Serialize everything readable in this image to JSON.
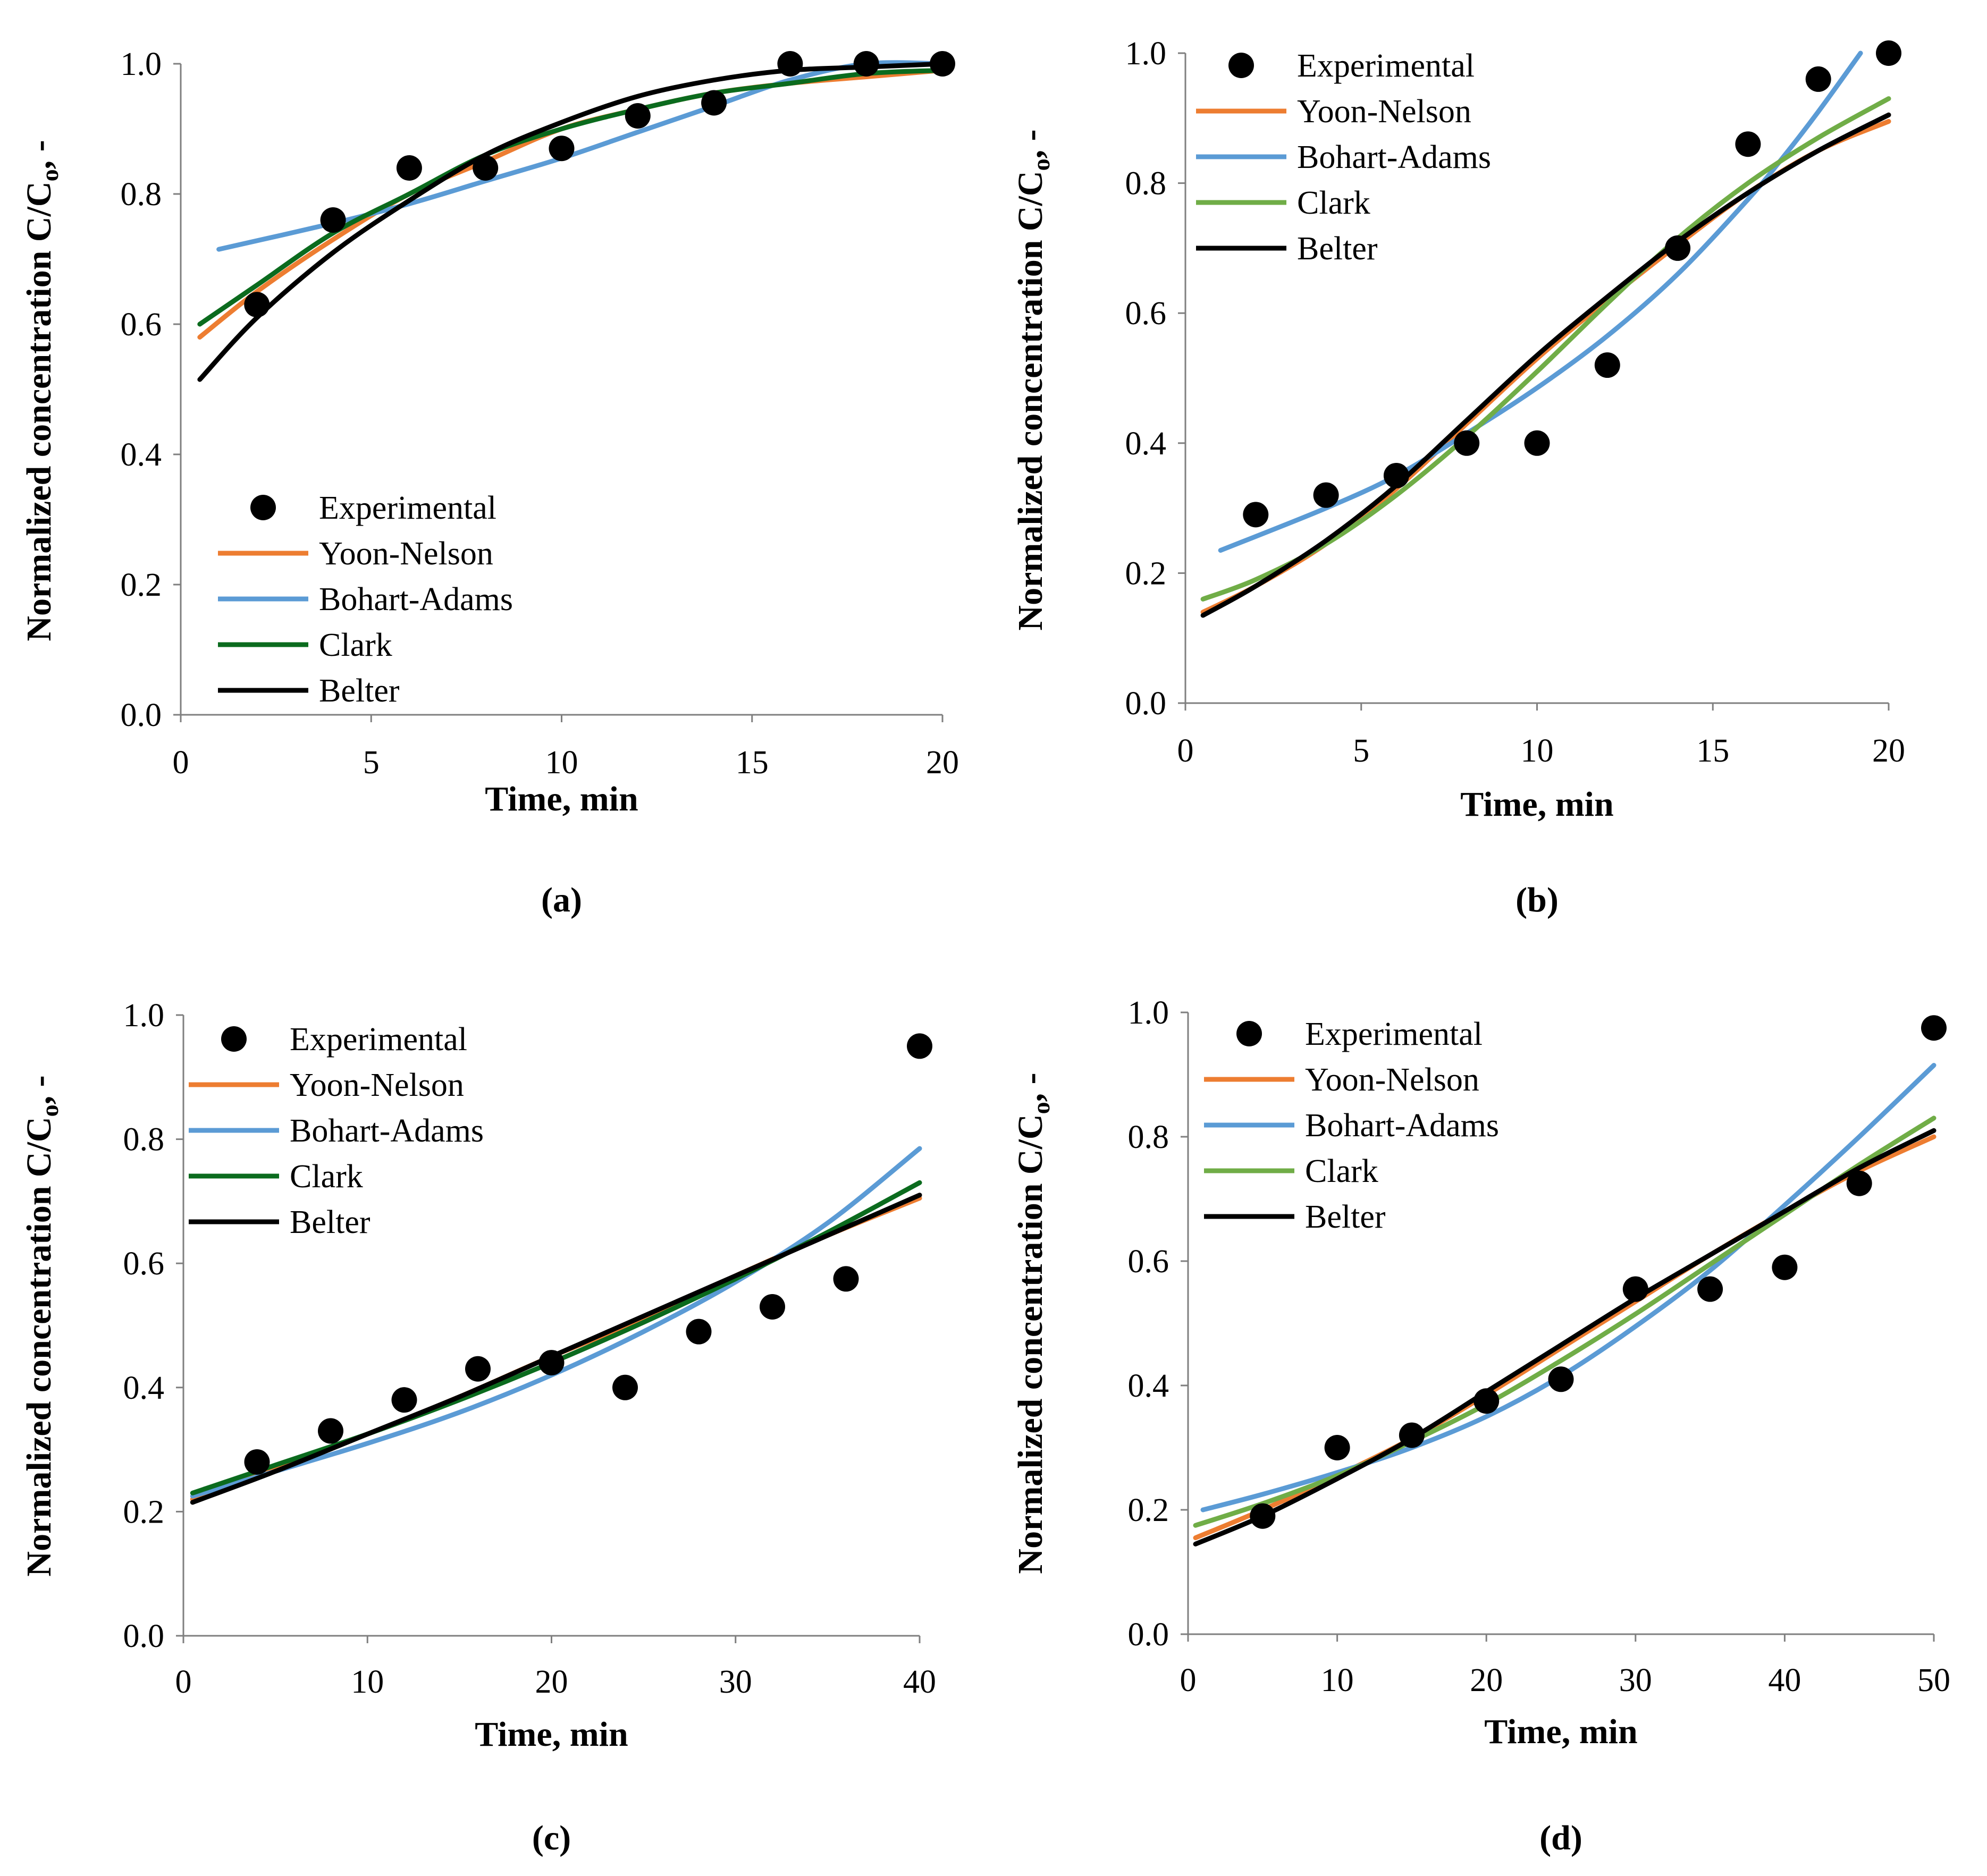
{
  "figure": {
    "colors": {
      "Experimental": "#000000",
      "Yoon-Nelson": "#ED7D31",
      "Bohart-Adams": "#5B9BD5",
      "Clark": "#0B6B1E",
      "Clark_light": "#70AD47",
      "Belter": "#000000"
    }
  },
  "chart_data": [
    {
      "type": "scatter",
      "panel_label": "(a)",
      "xlabel": "Time, min",
      "ylabel": "Normalized concentration C/C",
      "ylabel_sub": "o",
      "ylabel_suffix": ", -",
      "xlim": [
        0,
        20
      ],
      "ylim": [
        0,
        1.0
      ],
      "x_ticks": [
        "0",
        "5",
        "10",
        "15",
        "20"
      ],
      "y_ticks": [
        "0.0",
        "0.2",
        "0.4",
        "0.6",
        "0.8",
        "1.0"
      ],
      "legend_position": "lower-left",
      "legend_entries": [
        "Experimental",
        "Yoon-Nelson",
        "Bohart-Adams",
        "Clark",
        "Belter"
      ],
      "series": [
        {
          "name": "Experimental",
          "kind": "points",
          "x": [
            2,
            4,
            6,
            8,
            10,
            12,
            14,
            16,
            18,
            20
          ],
          "y": [
            0.63,
            0.76,
            0.84,
            0.84,
            0.87,
            0.92,
            0.94,
            1.0,
            1.0,
            1.0
          ]
        },
        {
          "name": "Yoon-Nelson",
          "kind": "line",
          "color_key": "Yoon-Nelson",
          "x": [
            0.5,
            2,
            4,
            6,
            8,
            10,
            12,
            14,
            16,
            18,
            20
          ],
          "y": [
            0.58,
            0.65,
            0.73,
            0.8,
            0.85,
            0.9,
            0.93,
            0.955,
            0.97,
            0.98,
            0.99
          ]
        },
        {
          "name": "Bohart-Adams",
          "kind": "line",
          "color_key": "Bohart-Adams",
          "x": [
            1,
            4,
            6,
            8,
            10,
            12,
            14,
            16,
            18,
            20
          ],
          "y": [
            0.715,
            0.755,
            0.785,
            0.82,
            0.855,
            0.895,
            0.935,
            0.975,
            1.0,
            1.0
          ]
        },
        {
          "name": "Clark",
          "kind": "line",
          "color_key": "Clark",
          "x": [
            0.5,
            2,
            4,
            6,
            8,
            10,
            12,
            14,
            16,
            18,
            20
          ],
          "y": [
            0.6,
            0.66,
            0.74,
            0.8,
            0.86,
            0.9,
            0.93,
            0.955,
            0.97,
            0.985,
            0.99
          ]
        },
        {
          "name": "Belter",
          "kind": "line",
          "color_key": "Belter",
          "x": [
            0.5,
            2,
            4,
            6,
            8,
            10,
            12,
            14,
            16,
            18,
            20
          ],
          "y": [
            0.515,
            0.61,
            0.71,
            0.79,
            0.86,
            0.91,
            0.95,
            0.975,
            0.99,
            0.995,
            1.0
          ]
        }
      ]
    },
    {
      "type": "scatter",
      "panel_label": "(b)",
      "xlabel": "Time, min",
      "ylabel": "Normalized concentration C/C",
      "ylabel_sub": "o",
      "ylabel_suffix": ", -",
      "xlim": [
        0,
        20
      ],
      "ylim": [
        0,
        1.0
      ],
      "x_ticks": [
        "0",
        "5",
        "10",
        "15",
        "20"
      ],
      "y_ticks": [
        "0.0",
        "0.2",
        "0.4",
        "0.6",
        "0.8",
        "1.0"
      ],
      "legend_position": "top-left",
      "legend_entries": [
        "Experimental",
        "Yoon-Nelson",
        "Bohart-Adams",
        "Clark",
        "Belter"
      ],
      "series": [
        {
          "name": "Experimental",
          "kind": "points",
          "x": [
            2,
            4,
            6,
            8,
            10,
            12,
            14,
            16,
            18,
            20
          ],
          "y": [
            0.29,
            0.32,
            0.35,
            0.4,
            0.4,
            0.52,
            0.7,
            0.86,
            0.96,
            1.0
          ]
        },
        {
          "name": "Yoon-Nelson",
          "kind": "line",
          "color_key": "Yoon-Nelson",
          "x": [
            0.5,
            2,
            4,
            6,
            8,
            10,
            12,
            14,
            16,
            18,
            20
          ],
          "y": [
            0.14,
            0.18,
            0.245,
            0.33,
            0.43,
            0.53,
            0.62,
            0.705,
            0.785,
            0.85,
            0.895
          ]
        },
        {
          "name": "Bohart-Adams",
          "kind": "line",
          "color_key": "Bohart-Adams",
          "x": [
            1,
            4,
            6,
            8,
            10,
            12,
            14,
            16,
            17,
            18,
            19.2
          ],
          "y": [
            0.235,
            0.3,
            0.35,
            0.415,
            0.485,
            0.565,
            0.66,
            0.775,
            0.84,
            0.91,
            1.0
          ]
        },
        {
          "name": "Clark",
          "kind": "line",
          "color_key": "Clark_light",
          "x": [
            0.5,
            2,
            4,
            6,
            8,
            10,
            12,
            14,
            16,
            18,
            20
          ],
          "y": [
            0.16,
            0.19,
            0.245,
            0.32,
            0.41,
            0.51,
            0.615,
            0.715,
            0.8,
            0.87,
            0.93
          ]
        },
        {
          "name": "Belter",
          "kind": "line",
          "color_key": "Belter",
          "x": [
            0.5,
            2,
            4,
            6,
            8,
            10,
            12,
            14,
            16,
            18,
            20
          ],
          "y": [
            0.135,
            0.18,
            0.25,
            0.335,
            0.435,
            0.535,
            0.625,
            0.71,
            0.785,
            0.85,
            0.905
          ]
        }
      ]
    },
    {
      "type": "scatter",
      "panel_label": "(c)",
      "xlabel": "Time, min",
      "ylabel": "Normalized concentration C/C",
      "ylabel_sub": "o",
      "ylabel_suffix": ", -",
      "xlim": [
        0,
        40
      ],
      "ylim": [
        0,
        1.0
      ],
      "x_ticks": [
        "0",
        "10",
        "20",
        "30",
        "40"
      ],
      "y_ticks": [
        "0.0",
        "0.2",
        "0.4",
        "0.6",
        "0.8",
        "1.0"
      ],
      "legend_position": "top-left",
      "legend_entries": [
        "Experimental",
        "Yoon-Nelson",
        "Bohart-Adams",
        "Clark",
        "Belter"
      ],
      "series": [
        {
          "name": "Experimental",
          "kind": "points",
          "x": [
            4,
            8,
            12,
            16,
            20,
            24,
            28,
            32,
            36,
            40
          ],
          "y": [
            0.28,
            0.33,
            0.38,
            0.43,
            0.44,
            0.4,
            0.49,
            0.53,
            0.575,
            0.95
          ]
        },
        {
          "name": "Yoon-Nelson",
          "kind": "line",
          "color_key": "Yoon-Nelson",
          "x": [
            0.5,
            5,
            10,
            15,
            20,
            25,
            30,
            35,
            40
          ],
          "y": [
            0.22,
            0.27,
            0.325,
            0.385,
            0.45,
            0.51,
            0.58,
            0.645,
            0.705
          ]
        },
        {
          "name": "Bohart-Adams",
          "kind": "line",
          "color_key": "Bohart-Adams",
          "x": [
            0.5,
            5,
            10,
            15,
            20,
            25,
            30,
            35,
            40
          ],
          "y": [
            0.225,
            0.265,
            0.31,
            0.36,
            0.42,
            0.49,
            0.57,
            0.665,
            0.785
          ]
        },
        {
          "name": "Clark",
          "kind": "line",
          "color_key": "Clark",
          "x": [
            0.5,
            5,
            10,
            15,
            20,
            25,
            30,
            35,
            40
          ],
          "y": [
            0.23,
            0.275,
            0.325,
            0.38,
            0.44,
            0.505,
            0.575,
            0.65,
            0.73
          ]
        },
        {
          "name": "Belter",
          "kind": "line",
          "color_key": "Belter",
          "x": [
            0.5,
            5,
            10,
            15,
            20,
            25,
            30,
            35,
            40
          ],
          "y": [
            0.215,
            0.265,
            0.325,
            0.385,
            0.45,
            0.515,
            0.58,
            0.645,
            0.71
          ]
        }
      ]
    },
    {
      "type": "scatter",
      "panel_label": "(d)",
      "xlabel": "Time, min",
      "ylabel": "Normalized concentration C/C",
      "ylabel_sub": "o",
      "ylabel_suffix": ", -",
      "xlim": [
        0,
        50
      ],
      "ylim": [
        0,
        1.0
      ],
      "x_ticks": [
        "0",
        "10",
        "20",
        "30",
        "40",
        "50"
      ],
      "y_ticks": [
        "0.0",
        "0.2",
        "0.4",
        "0.6",
        "0.8",
        "1.0"
      ],
      "legend_position": "top-left",
      "legend_entries": [
        "Experimental",
        "Yoon-Nelson",
        "Bohart-Adams",
        "Clark",
        "Belter"
      ],
      "series": [
        {
          "name": "Experimental",
          "kind": "points",
          "x": [
            5,
            10,
            15,
            20,
            25,
            30,
            35,
            40,
            45,
            50
          ],
          "y": [
            0.19,
            0.3,
            0.32,
            0.375,
            0.41,
            0.555,
            0.555,
            0.59,
            0.725,
            0.975
          ]
        },
        {
          "name": "Yoon-Nelson",
          "kind": "line",
          "color_key": "Yoon-Nelson",
          "x": [
            0.5,
            5,
            10,
            15,
            20,
            25,
            30,
            35,
            40,
            45,
            50
          ],
          "y": [
            0.155,
            0.2,
            0.255,
            0.315,
            0.385,
            0.46,
            0.535,
            0.61,
            0.68,
            0.745,
            0.8
          ]
        },
        {
          "name": "Bohart-Adams",
          "kind": "line",
          "color_key": "Bohart-Adams",
          "x": [
            1,
            5,
            10,
            15,
            20,
            25,
            30,
            35,
            40,
            45,
            50
          ],
          "y": [
            0.2,
            0.225,
            0.26,
            0.3,
            0.35,
            0.415,
            0.495,
            0.585,
            0.69,
            0.8,
            0.915
          ]
        },
        {
          "name": "Clark",
          "kind": "line",
          "color_key": "Clark_light",
          "x": [
            0.5,
            5,
            10,
            15,
            20,
            25,
            30,
            35,
            40,
            45,
            50
          ],
          "y": [
            0.175,
            0.21,
            0.255,
            0.31,
            0.37,
            0.44,
            0.515,
            0.595,
            0.675,
            0.755,
            0.83
          ]
        },
        {
          "name": "Belter",
          "kind": "line",
          "color_key": "Belter",
          "x": [
            0.5,
            5,
            10,
            15,
            20,
            25,
            30,
            35,
            40,
            45,
            50
          ],
          "y": [
            0.145,
            0.19,
            0.25,
            0.315,
            0.39,
            0.465,
            0.54,
            0.61,
            0.68,
            0.75,
            0.81
          ]
        }
      ]
    }
  ]
}
